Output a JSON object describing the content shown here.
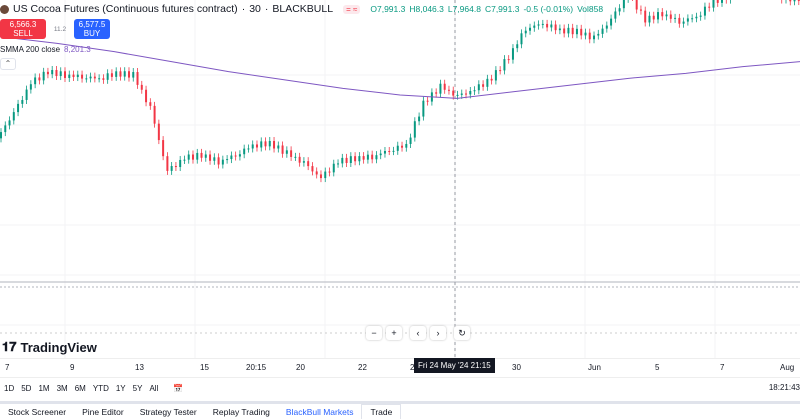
{
  "header": {
    "symbol": "US Cocoa Futures (Continuous futures contract)",
    "interval": "30",
    "broker": "BLACKBULL",
    "separator": "·",
    "ohlc": {
      "open": "O7,991.3",
      "high": "H8,046.3",
      "low": "L7,964.8",
      "close": "C7,991.3",
      "change": "-0.5 (-0.01%)",
      "volume": "Vol858"
    }
  },
  "trade": {
    "sell_price": "6,566.3",
    "sell_label": "SELL",
    "spread": "11.2",
    "buy_price": "6,577.5",
    "buy_label": "BUY"
  },
  "indicator": {
    "name": "SMMA 200 close",
    "value": "8,201.3",
    "color": "#7e57c2"
  },
  "nav": {
    "zoom_out": "−",
    "zoom_in": "+",
    "left": "‹",
    "right": "›",
    "reset": "↻"
  },
  "brand": "TradingView",
  "xaxis": {
    "ticks": [
      "7",
      "9",
      "13",
      "15",
      "20:15",
      "20",
      "22",
      "2",
      "30",
      "Jun",
      "5",
      "7",
      "Aug"
    ],
    "crosshair_label": "Fri 24 May '24   21:15"
  },
  "ranges": [
    "1D",
    "5D",
    "1M",
    "3M",
    "6M",
    "YTD",
    "1Y",
    "5Y",
    "All"
  ],
  "clock": "18:21:43",
  "bottom_tabs": [
    "Stock Screener",
    "Pine Editor",
    "Strategy Tester",
    "Replay Trading",
    "BlackBull Markets",
    "Trade"
  ],
  "colors": {
    "up": "#089981",
    "down": "#f23645",
    "smma": "#7e57c2"
  },
  "chart_data": {
    "type": "candlestick",
    "closes": [
      7870,
      8020,
      8200,
      8270,
      8250,
      8240,
      8230,
      8260,
      8250,
      8050,
      7670,
      7750,
      7770,
      7730,
      7770,
      7830,
      7840,
      7780,
      7720,
      7630,
      7730,
      7750,
      7760,
      7800,
      7830,
      8080,
      8180,
      8120,
      8160,
      8230,
      8360,
      8530,
      8560,
      8520,
      8510,
      8470,
      8580,
      8740,
      8580,
      8620,
      8570,
      8600,
      8690,
      8730,
      8770,
      8840,
      8710
    ],
    "smma": [
      8480,
      8440,
      8390,
      8330,
      8270,
      8220,
      8170,
      8130,
      8110,
      8150,
      8190,
      8230,
      8260,
      8300,
      8330
    ]
  }
}
